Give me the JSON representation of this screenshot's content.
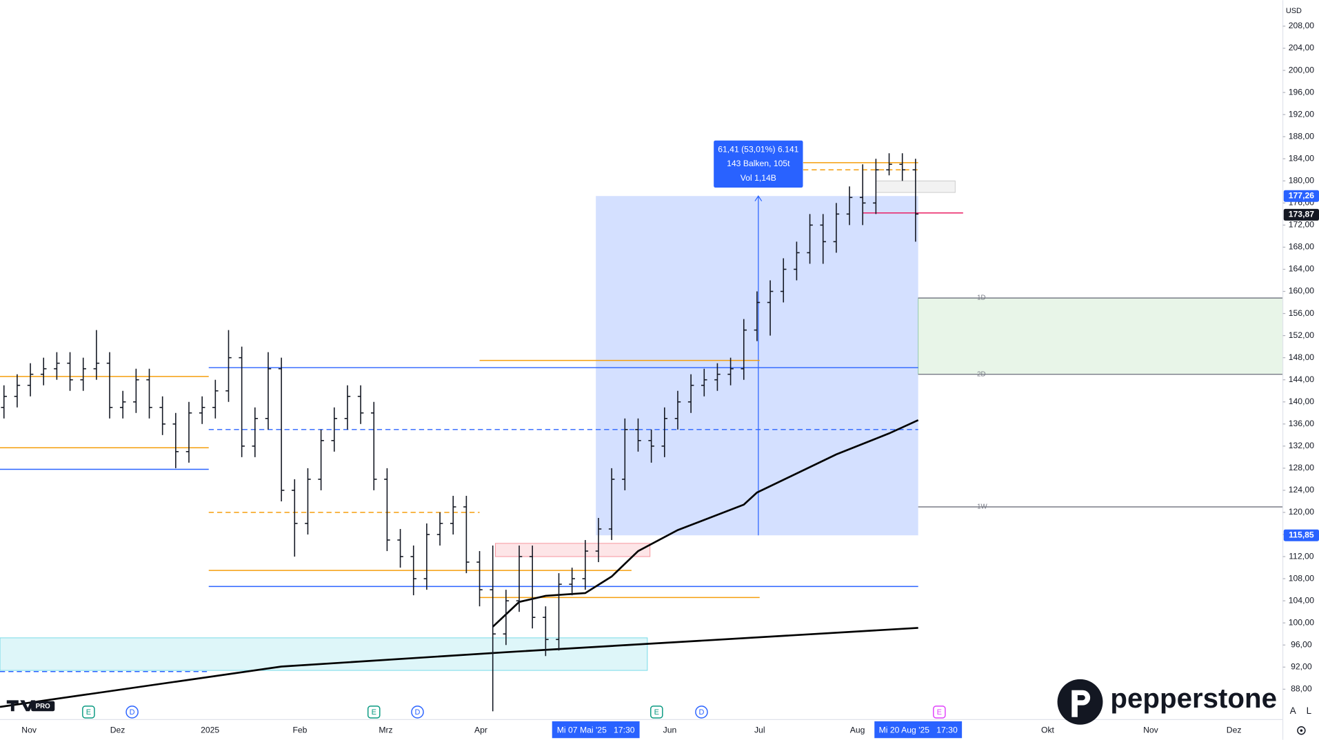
{
  "chart_data": {
    "type": "ohlc",
    "currency": "USD",
    "ylim": [
      82.5,
      212.7
    ],
    "yticks": [
      {
        "value": 88,
        "label": "88,00"
      },
      {
        "value": 92,
        "label": "92,00"
      },
      {
        "value": 96,
        "label": "96,00"
      },
      {
        "value": 100,
        "label": "100,00"
      },
      {
        "value": 104,
        "label": "104,00"
      },
      {
        "value": 108,
        "label": "108,00"
      },
      {
        "value": 112,
        "label": "112,00"
      },
      {
        "value": 116,
        "label": "116,00"
      },
      {
        "value": 120,
        "label": "120,00"
      },
      {
        "value": 124,
        "label": "124,00"
      },
      {
        "value": 128,
        "label": "128,00"
      },
      {
        "value": 132,
        "label": "132,00"
      },
      {
        "value": 136,
        "label": "136,00"
      },
      {
        "value": 140,
        "label": "140,00"
      },
      {
        "value": 144,
        "label": "144,00"
      },
      {
        "value": 148,
        "label": "148,00"
      },
      {
        "value": 152,
        "label": "152,00"
      },
      {
        "value": 156,
        "label": "156,00"
      },
      {
        "value": 160,
        "label": "160,00"
      },
      {
        "value": 164,
        "label": "164,00"
      },
      {
        "value": 168,
        "label": "168,00"
      },
      {
        "value": 172,
        "label": "172,00"
      },
      {
        "value": 176,
        "label": "176,00"
      },
      {
        "value": 180,
        "label": "180,00"
      },
      {
        "value": 184,
        "label": "184,00"
      },
      {
        "value": 188,
        "label": "188,00"
      },
      {
        "value": 192,
        "label": "192,00"
      },
      {
        "value": 196,
        "label": "196,00"
      },
      {
        "value": 200,
        "label": "200,00"
      },
      {
        "value": 204,
        "label": "204,00"
      },
      {
        "value": 208,
        "label": "208,00"
      }
    ],
    "xlim": [
      -0.3,
      96.8
    ],
    "xticks": [
      {
        "value": 1.9,
        "label": "Nov"
      },
      {
        "value": 8.6,
        "label": "Dez"
      },
      {
        "value": 15.6,
        "label": "2025"
      },
      {
        "value": 22.4,
        "label": "Feb"
      },
      {
        "value": 28.9,
        "label": "Mrz"
      },
      {
        "value": 36.1,
        "label": "Apr"
      },
      {
        "value": 50.4,
        "label": "Jun"
      },
      {
        "value": 57.2,
        "label": "Jul"
      },
      {
        "value": 64.6,
        "label": "Aug"
      },
      {
        "value": 79,
        "label": "Okt"
      },
      {
        "value": 86.8,
        "label": "Nov"
      },
      {
        "value": 93.1,
        "label": "Dez"
      }
    ],
    "date_highlights": [
      {
        "x": 44.8,
        "label": "Mi 07 Mai '25   17:30"
      },
      {
        "x": 69.2,
        "label": "Mi 20 Aug '25   17:30"
      }
    ],
    "bar_color": "#131722",
    "open": [
      139,
      141,
      143,
      145,
      146,
      147,
      144,
      146,
      147,
      139,
      140,
      144,
      139,
      136,
      131,
      138,
      139,
      142,
      148,
      132,
      137,
      146,
      124,
      118,
      126,
      133,
      137,
      141,
      138,
      126,
      115,
      112,
      108,
      116,
      118,
      121,
      111,
      106,
      98,
      104,
      112,
      101,
      97,
      107,
      108,
      113,
      117,
      126,
      135,
      133,
      132,
      137,
      140,
      143,
      144,
      145,
      146,
      153,
      158,
      160,
      164,
      167,
      172,
      169,
      174,
      177,
      176,
      182,
      183,
      182
    ],
    "high": [
      143,
      145,
      147,
      148,
      149,
      149,
      148,
      153,
      149,
      142,
      146,
      146,
      141,
      138,
      140,
      141,
      144,
      153,
      150,
      139,
      149,
      148,
      126,
      128,
      135,
      139,
      143,
      143,
      140,
      128,
      117,
      114,
      118,
      120,
      123,
      123,
      113,
      114,
      106,
      114,
      114,
      103,
      109,
      110,
      115,
      119,
      128,
      137,
      137,
      135,
      139,
      142,
      145,
      146,
      147,
      148,
      155,
      160,
      162,
      166,
      169,
      174,
      174,
      176,
      179,
      183,
      184,
      185,
      185,
      184
    ],
    "low": [
      137,
      139,
      141,
      143,
      144,
      142,
      142,
      144,
      137,
      137,
      138,
      137,
      134,
      128,
      129,
      136,
      137,
      140,
      130,
      130,
      135,
      122,
      112,
      116,
      124,
      131,
      135,
      136,
      124,
      113,
      110,
      105,
      106,
      114,
      116,
      109,
      103,
      84,
      96,
      102,
      99,
      94,
      95,
      105,
      106,
      111,
      115,
      124,
      131,
      129,
      130,
      135,
      138,
      141,
      142,
      143,
      144,
      151,
      152,
      158,
      162,
      165,
      165,
      167,
      172,
      172,
      174,
      181,
      180,
      169
    ],
    "close": [
      141,
      143,
      145,
      146,
      147,
      144,
      146,
      147,
      139,
      140,
      144,
      139,
      136,
      131,
      138,
      139,
      142,
      148,
      132,
      137,
      146,
      124,
      118,
      126,
      133,
      137,
      141,
      138,
      126,
      115,
      112,
      108,
      116,
      118,
      121,
      111,
      106,
      98,
      104,
      112,
      101,
      97,
      107,
      108,
      113,
      117,
      126,
      135,
      133,
      132,
      137,
      140,
      143,
      144,
      145,
      146,
      153,
      158,
      160,
      164,
      167,
      172,
      169,
      174,
      177,
      176,
      182,
      183,
      182,
      174
    ],
    "moving_averages": [
      {
        "color": "#000000",
        "x": [
          -0.3,
          21,
          38,
          69.2
        ],
        "values": [
          84.8,
          92.1,
          94.7,
          99.1
        ]
      },
      {
        "color": "#000000",
        "x": [
          37,
          39,
          41,
          44,
          46,
          48,
          51,
          56,
          57,
          63,
          67,
          69.2
        ],
        "values": [
          99.3,
          103.8,
          104.9,
          105.4,
          108.4,
          113,
          116.8,
          121.4,
          123.6,
          130.5,
          134.3,
          136.7
        ]
      }
    ],
    "zones": [
      {
        "range": [
          91.4,
          97.3
        ],
        "x": [
          -0.3,
          48.7
        ],
        "color": "#00bcd4"
      },
      {
        "range": [
          112,
          114.4
        ],
        "x": [
          37.2,
          48.9
        ],
        "color": "#f23645"
      },
      {
        "range": [
          145,
          158.8
        ],
        "x": [
          69.2,
          96.8
        ],
        "color": "#4caf50"
      },
      {
        "range": [
          177.9,
          180
        ],
        "x": [
          66,
          72
        ],
        "color": "#9e9e9e"
      }
    ],
    "levels": [
      {
        "value": 144.6,
        "x": [
          -0.3,
          15.5
        ],
        "color": "#f59e0b"
      },
      {
        "value": 131.7,
        "x": [
          -0.3,
          15.5
        ],
        "color": "#f59e0b"
      },
      {
        "value": 127.8,
        "x": [
          -0.3,
          15.5
        ],
        "color": "#2962ff"
      },
      {
        "value": 146.2,
        "x": [
          15.5,
          69.2
        ],
        "color": "#2962ff"
      },
      {
        "value": 147.5,
        "x": [
          36,
          57.2
        ],
        "color": "#f59e0b"
      },
      {
        "value": 135,
        "x": [
          15.5,
          69.2
        ],
        "color": "#2962ff",
        "dash": true
      },
      {
        "value": 120,
        "x": [
          15.5,
          36
        ],
        "color": "#f59e0b",
        "dash": true
      },
      {
        "value": 109.5,
        "x": [
          15.5,
          47.5
        ],
        "color": "#f59e0b"
      },
      {
        "value": 106.6,
        "x": [
          15.5,
          69.2
        ],
        "color": "#2962ff"
      },
      {
        "value": 104.6,
        "x": [
          36,
          57.2
        ],
        "color": "#f59e0b"
      },
      {
        "value": 91.2,
        "x": [
          -0.3,
          15.5
        ],
        "color": "#2962ff",
        "dash": true
      },
      {
        "value": 183.3,
        "x": [
          60.5,
          69.2
        ],
        "color": "#f59e0b"
      },
      {
        "value": 182,
        "x": [
          60.5,
          69.2
        ],
        "color": "#f59e0b",
        "dash": true
      },
      {
        "value": 174.2,
        "x": [
          65,
          72.6
        ],
        "color": "#e91e63"
      },
      {
        "value": 158.8,
        "x": [
          69.2,
          96.8
        ],
        "color": "#787b86",
        "label": "1D"
      },
      {
        "value": 145,
        "x": [
          69.2,
          96.8
        ],
        "color": "#787b86",
        "label": "2D"
      },
      {
        "value": 121,
        "x": [
          69.2,
          96.8
        ],
        "color": "#787b86",
        "label": "1W"
      }
    ],
    "measure": {
      "range": [
        115.85,
        177.26
      ],
      "x": [
        44.8,
        69.2
      ],
      "arrow_x": 57.1,
      "color": "#2962ff",
      "lines": [
        "61,41 (53,01%) 6.141",
        "143 Balken, 105t",
        "Vol 1,14B"
      ]
    },
    "price_labels": [
      {
        "value": 177.26,
        "label": "177,26",
        "color": "#2962ff"
      },
      {
        "value": 173.87,
        "label": "173,87",
        "color": "#131722"
      },
      {
        "value": 115.85,
        "label": "115,85",
        "color": "#2962ff"
      }
    ],
    "events": [
      {
        "x": 6.4,
        "label": "E",
        "color": "#089981"
      },
      {
        "x": 9.7,
        "label": "D",
        "color": "#2962ff"
      },
      {
        "x": 28,
        "label": "E",
        "color": "#089981"
      },
      {
        "x": 31.3,
        "label": "D",
        "color": "#2962ff"
      },
      {
        "x": 49.4,
        "label": "E",
        "color": "#089981"
      },
      {
        "x": 52.8,
        "label": "D",
        "color": "#2962ff"
      },
      {
        "x": 70.8,
        "label": "E",
        "color": "#e040fb"
      }
    ],
    "brand": "pepperstone",
    "tv_badge": "PRO",
    "axis_buttons": [
      "A",
      "L"
    ]
  }
}
